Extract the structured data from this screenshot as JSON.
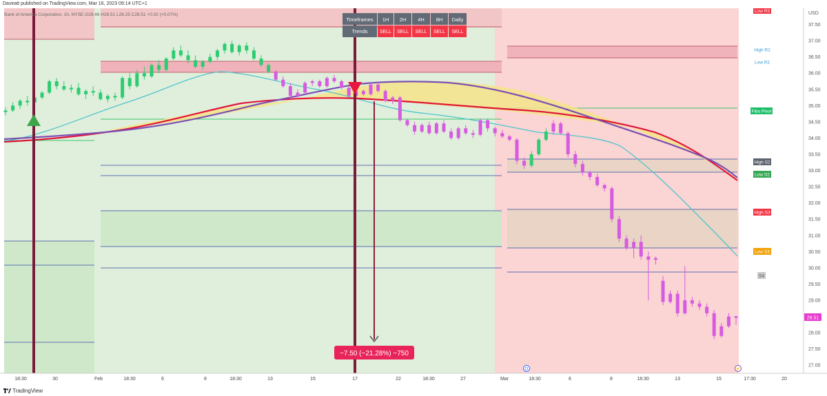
{
  "header": {
    "published": "Daveatt published on TradingView.com, Mar 16, 2023 09:14 UTC+1"
  },
  "footer": {
    "brand": "TradingView"
  },
  "chart_data": {
    "type": "candlestick",
    "symbol_line": "Bank of America Corporation, 1h, NYSE  O28.46  H28.51  L28.25  C28.51  +0.02 (+0.07%)",
    "currency": "USD",
    "ylim": [
      26.75,
      38.0
    ],
    "y_ticks": [
      "37.50",
      "37.00",
      "36.50",
      "36.00",
      "35.50",
      "35.00",
      "34.50",
      "34.00",
      "33.50",
      "33.00",
      "32.50",
      "32.00",
      "31.50",
      "31.00",
      "30.50",
      "30.00",
      "29.50",
      "29.00",
      "28.50",
      "28.00",
      "27.50",
      "27.00"
    ],
    "x_ticks": [
      "18:30",
      "30",
      "Feb",
      "18:30",
      "6",
      "8",
      "18:30",
      "13",
      "15",
      "17",
      "22",
      "18:30",
      "27",
      "Mar",
      "18:30",
      "6",
      "8",
      "18:30",
      "13",
      "15",
      "17:30",
      "20"
    ],
    "last_price": "28.51",
    "table": {
      "header": [
        "Timeframes",
        "1H",
        "2H",
        "4H",
        "8H",
        "Daily"
      ],
      "row_label": "Trends",
      "row": [
        "SELL",
        "SELL",
        "SELL",
        "SELL",
        "SELL"
      ]
    },
    "measure_label": "−7.50 (−21.28%) −750",
    "level_labels": [
      "Low R3",
      "High R2",
      "Low R2",
      "Fibo Pivot",
      "High S2",
      "Low S2",
      "High S3",
      "Low S3",
      "S4"
    ],
    "markers": [
      "D",
      "⚡"
    ],
    "ohlc": [
      [
        34.8,
        34.95,
        34.7,
        34.85
      ],
      [
        34.85,
        35.1,
        34.8,
        35.0
      ],
      [
        35.0,
        35.2,
        34.9,
        35.15
      ],
      [
        35.15,
        35.3,
        35.0,
        35.1
      ],
      [
        35.1,
        35.3,
        35.0,
        35.25
      ],
      [
        35.25,
        35.45,
        35.2,
        35.4
      ],
      [
        35.4,
        35.8,
        35.35,
        35.75
      ],
      [
        35.75,
        35.85,
        35.5,
        35.6
      ],
      [
        35.6,
        35.75,
        35.45,
        35.5
      ],
      [
        35.5,
        35.65,
        35.4,
        35.55
      ],
      [
        35.55,
        35.7,
        35.3,
        35.35
      ],
      [
        35.35,
        35.5,
        35.2,
        35.45
      ],
      [
        35.45,
        35.6,
        35.3,
        35.4
      ],
      [
        35.4,
        35.5,
        35.15,
        35.2
      ],
      [
        35.2,
        35.35,
        35.1,
        35.3
      ],
      [
        35.3,
        35.4,
        35.15,
        35.25
      ],
      [
        35.25,
        35.9,
        35.2,
        35.85
      ],
      [
        35.85,
        36.0,
        35.5,
        35.6
      ],
      [
        35.6,
        36.1,
        35.55,
        36.0
      ],
      [
        36.0,
        36.2,
        35.8,
        35.9
      ],
      [
        35.9,
        36.3,
        35.85,
        36.25
      ],
      [
        36.25,
        36.4,
        36.0,
        36.1
      ],
      [
        36.1,
        36.5,
        36.05,
        36.45
      ],
      [
        36.45,
        36.8,
        36.4,
        36.7
      ],
      [
        36.7,
        36.85,
        36.5,
        36.55
      ],
      [
        36.55,
        36.7,
        36.3,
        36.4
      ],
      [
        36.4,
        36.55,
        36.15,
        36.2
      ],
      [
        36.2,
        36.4,
        36.1,
        36.35
      ],
      [
        36.35,
        36.6,
        36.3,
        36.5
      ],
      [
        36.5,
        36.75,
        36.4,
        36.7
      ],
      [
        36.7,
        36.95,
        36.6,
        36.9
      ],
      [
        36.9,
        37.0,
        36.6,
        36.65
      ],
      [
        36.65,
        36.9,
        36.55,
        36.85
      ],
      [
        36.85,
        36.95,
        36.6,
        36.7
      ],
      [
        36.7,
        36.8,
        36.4,
        36.45
      ],
      [
        36.45,
        36.55,
        36.2,
        36.25
      ],
      [
        36.25,
        36.3,
        36.0,
        36.05
      ],
      [
        36.05,
        36.1,
        35.75,
        35.8
      ],
      [
        35.8,
        35.9,
        35.55,
        35.6
      ],
      [
        35.6,
        35.7,
        35.2,
        35.3
      ],
      [
        35.3,
        35.5,
        35.2,
        35.4
      ],
      [
        35.4,
        35.75,
        35.35,
        35.7
      ],
      [
        35.7,
        35.8,
        35.6,
        35.75
      ],
      [
        35.75,
        35.8,
        35.55,
        35.6
      ],
      [
        35.6,
        35.9,
        35.55,
        35.85
      ],
      [
        35.85,
        35.95,
        35.7,
        35.75
      ],
      [
        35.75,
        35.8,
        35.5,
        35.55
      ],
      [
        35.55,
        35.6,
        35.25,
        35.3
      ],
      [
        35.3,
        35.5,
        35.25,
        35.45
      ],
      [
        35.45,
        35.5,
        35.3,
        35.35
      ],
      [
        35.35,
        35.7,
        35.3,
        35.65
      ],
      [
        35.65,
        35.75,
        35.4,
        35.45
      ],
      [
        35.45,
        35.5,
        35.1,
        35.15
      ],
      [
        35.15,
        35.3,
        35.05,
        35.25
      ],
      [
        35.25,
        35.3,
        34.5,
        34.55
      ],
      [
        34.55,
        34.6,
        34.35,
        34.4
      ],
      [
        34.4,
        34.5,
        34.1,
        34.2
      ],
      [
        34.2,
        34.45,
        34.15,
        34.4
      ],
      [
        34.4,
        34.5,
        34.1,
        34.15
      ],
      [
        34.15,
        34.5,
        34.1,
        34.45
      ],
      [
        34.45,
        34.55,
        34.15,
        34.2
      ],
      [
        34.2,
        34.3,
        33.95,
        34.0
      ],
      [
        34.0,
        34.35,
        33.95,
        34.3
      ],
      [
        34.3,
        34.4,
        34.1,
        34.15
      ],
      [
        34.15,
        34.25,
        34.0,
        34.1
      ],
      [
        34.1,
        34.6,
        34.05,
        34.55
      ],
      [
        34.55,
        34.6,
        34.2,
        34.3
      ],
      [
        34.3,
        34.35,
        34.05,
        34.15
      ],
      [
        34.15,
        34.25,
        34.0,
        34.05
      ],
      [
        34.05,
        34.1,
        33.9,
        33.95
      ],
      [
        33.95,
        34.0,
        33.2,
        33.3
      ],
      [
        33.3,
        33.4,
        33.05,
        33.15
      ],
      [
        33.15,
        33.6,
        33.1,
        33.5
      ],
      [
        33.5,
        34.0,
        33.45,
        33.95
      ],
      [
        33.95,
        34.3,
        33.9,
        34.2
      ],
      [
        34.2,
        34.55,
        34.1,
        34.45
      ],
      [
        34.45,
        34.5,
        34.1,
        34.15
      ],
      [
        34.15,
        34.2,
        33.4,
        33.5
      ],
      [
        33.5,
        33.6,
        33.1,
        33.2
      ],
      [
        33.2,
        33.3,
        32.85,
        32.95
      ],
      [
        32.95,
        33.0,
        32.7,
        32.8
      ],
      [
        32.8,
        32.9,
        32.5,
        32.55
      ],
      [
        32.55,
        32.6,
        32.35,
        32.45
      ],
      [
        32.45,
        32.5,
        31.4,
        31.5
      ],
      [
        31.5,
        31.6,
        30.8,
        30.9
      ],
      [
        30.9,
        31.0,
        30.55,
        30.6
      ],
      [
        30.6,
        30.9,
        30.3,
        30.8
      ],
      [
        30.8,
        31.0,
        30.25,
        30.35
      ],
      [
        30.35,
        30.5,
        29.0,
        30.25
      ],
      [
        30.25,
        30.35,
        30.1,
        30.3
      ],
      [
        29.6,
        29.75,
        28.85,
        28.95
      ],
      [
        28.95,
        29.3,
        28.9,
        29.2
      ],
      [
        29.2,
        29.3,
        28.5,
        28.6
      ],
      [
        28.6,
        30.05,
        28.55,
        29.0
      ],
      [
        29.0,
        29.1,
        28.8,
        28.9
      ],
      [
        28.9,
        29.0,
        28.7,
        28.8
      ],
      [
        28.8,
        28.9,
        28.5,
        28.6
      ],
      [
        28.6,
        28.7,
        27.8,
        27.9
      ],
      [
        27.9,
        28.3,
        27.85,
        28.2
      ],
      [
        28.2,
        28.6,
        28.15,
        28.5
      ],
      [
        28.46,
        28.51,
        28.25,
        28.51
      ]
    ]
  }
}
